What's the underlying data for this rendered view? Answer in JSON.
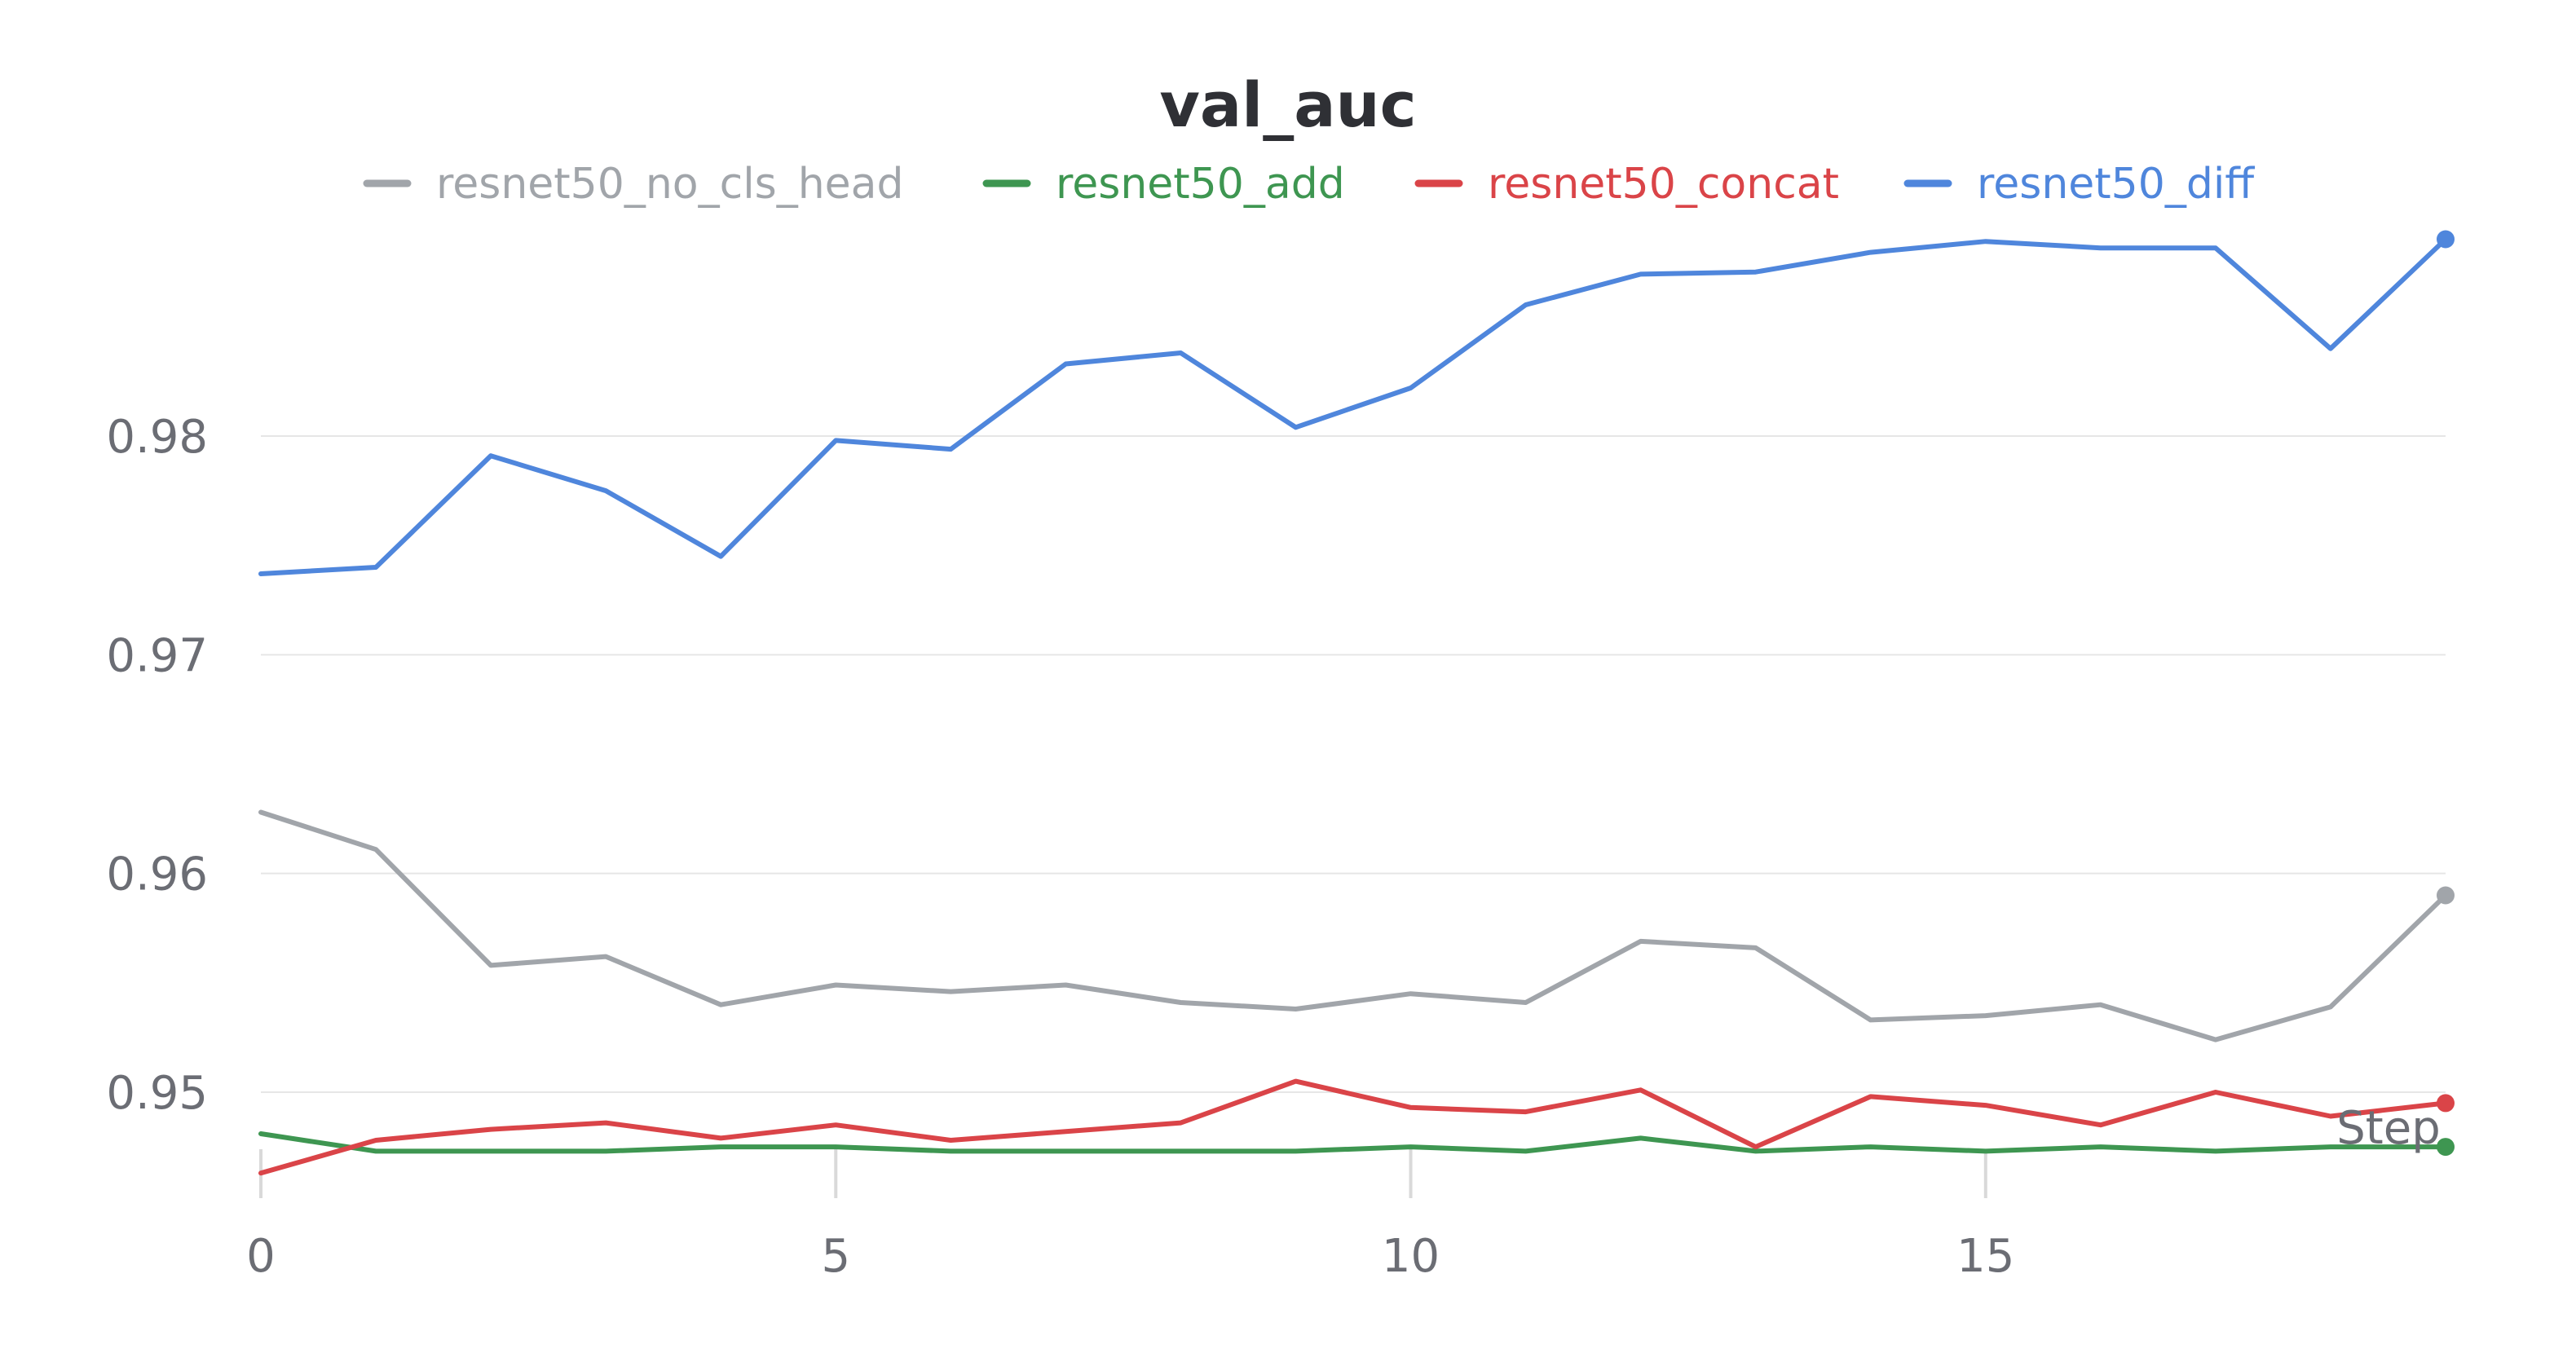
{
  "chart_data": {
    "type": "line",
    "title": "val_auc",
    "xlabel": "Step",
    "ylabel": "",
    "xlim": [
      0,
      19
    ],
    "ylim": [
      0.946,
      0.99
    ],
    "x_ticks": [
      0,
      5,
      10,
      15
    ],
    "y_ticks": [
      0.95,
      0.96,
      0.97,
      0.98
    ],
    "y_tick_labels": [
      "0.95",
      "0.96",
      "0.97",
      "0.98"
    ],
    "grid": "horizontal",
    "legend_position": "top",
    "x": [
      0,
      1,
      2,
      3,
      4,
      5,
      6,
      7,
      8,
      9,
      10,
      11,
      12,
      13,
      14,
      15,
      16,
      17,
      18,
      19
    ],
    "series": [
      {
        "name": "resnet50_no_cls_head",
        "color": "#a1a5aa",
        "values": [
          0.9628,
          0.9611,
          0.9558,
          0.9562,
          0.954,
          0.9549,
          0.9546,
          0.9549,
          0.9541,
          0.9538,
          0.9545,
          0.9541,
          0.9569,
          0.9566,
          0.9533,
          0.9535,
          0.954,
          0.9524,
          0.9539,
          0.959
        ]
      },
      {
        "name": "resnet50_add",
        "color": "#3e9651",
        "values": [
          0.9481,
          0.9473,
          0.9473,
          0.9473,
          0.9475,
          0.9475,
          0.9473,
          0.9473,
          0.9473,
          0.9473,
          0.9475,
          0.9473,
          0.9479,
          0.9473,
          0.9475,
          0.9473,
          0.9475,
          0.9473,
          0.9475,
          0.9475
        ]
      },
      {
        "name": "resnet50_concat",
        "color": "#da4448",
        "values": [
          0.9463,
          0.9478,
          0.9483,
          0.9486,
          0.9479,
          0.9485,
          0.9478,
          0.9482,
          0.9486,
          0.9505,
          0.9493,
          0.9491,
          0.9501,
          0.9475,
          0.9498,
          0.9494,
          0.9485,
          0.95,
          0.9489,
          0.9495
        ]
      },
      {
        "name": "resnet50_diff",
        "color": "#4f86dc",
        "values": [
          0.9737,
          0.974,
          0.9791,
          0.9775,
          0.9745,
          0.9798,
          0.9794,
          0.9833,
          0.9838,
          0.9804,
          0.9822,
          0.986,
          0.9874,
          0.9875,
          0.9884,
          0.9889,
          0.9886,
          0.9886,
          0.984,
          0.989
        ]
      }
    ]
  }
}
